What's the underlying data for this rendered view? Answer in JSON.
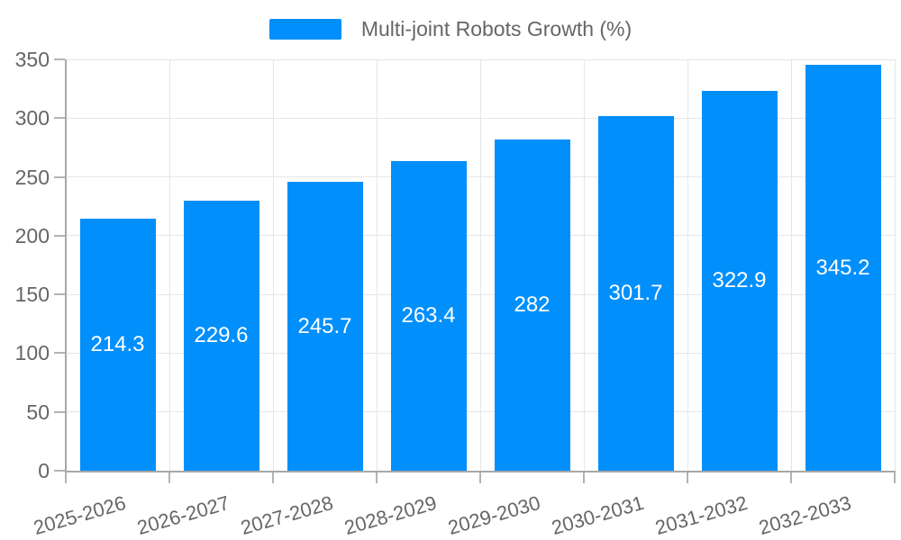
{
  "chart_data": {
    "type": "bar",
    "title": "",
    "legend": {
      "position": "top",
      "label": "Multi-joint Robots Growth (%)"
    },
    "categories": [
      "2025-2026",
      "2026-2027",
      "2027-2028",
      "2028-2029",
      "2029-2030",
      "2030-2031",
      "2031-2032",
      "2032-2033"
    ],
    "series": [
      {
        "name": "Multi-joint Robots Growth (%)",
        "values": [
          214.3,
          229.6,
          245.7,
          263.4,
          282,
          301.7,
          322.9,
          345.2
        ]
      }
    ],
    "xlabel": "",
    "ylabel": "",
    "ylim": [
      0,
      350
    ],
    "ytick_step": 50,
    "yticks": [
      0,
      50,
      100,
      150,
      200,
      250,
      300,
      350
    ],
    "grid": true,
    "data_labels": "inside-center",
    "colors": {
      "bar": "#008FFB",
      "grid": "#e6e6e6",
      "axis_line": "#a8a8a8",
      "tick": "#b3b3b3",
      "axis_text": "#666666",
      "data_label_text": "#ffffff",
      "background": "#ffffff"
    }
  }
}
